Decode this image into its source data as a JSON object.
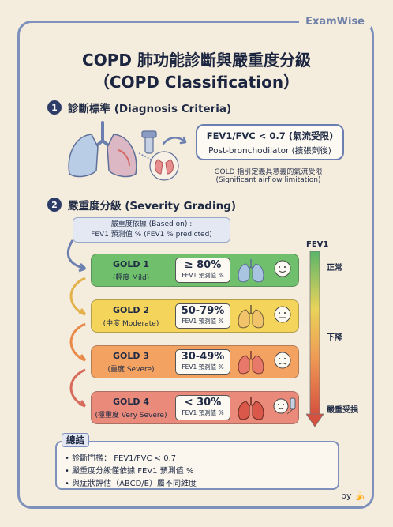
{
  "brand": "ExamWise",
  "title": {
    "line1": "COPD 肺功能診斷與嚴重度分級",
    "line2": "（COPD Classification）"
  },
  "diagnosis": {
    "number": "1",
    "heading": "診斷標準 (Diagnosis Criteria)",
    "criterion": "FEV1/FVC < 0.7 (氣流受限)",
    "criterion_sub": "Post-bronchodilator (擴張劑後)",
    "note_line1": "GOLD 指引定義具意義的氣流受限",
    "note_line2": "(Significant airflow limitation)"
  },
  "severity": {
    "number": "2",
    "heading": "嚴重度分級 (Severity Grading)",
    "basis_line1": "嚴重度依據 (Based on) :",
    "basis_line2": "FEV1 預測值 % (FEV1 % predicted)",
    "grades": [
      {
        "name": "GOLD 1",
        "sub": "(輕度 Mild)",
        "value": "≥ 80%",
        "value_label": "FEV1 預測值 %",
        "color": "#6fbf6c"
      },
      {
        "name": "GOLD 2",
        "sub": "(中度 Moderate)",
        "value": "50-79%",
        "value_label": "FEV1 預測值 %",
        "color": "#f4d45a"
      },
      {
        "name": "GOLD 3",
        "sub": "(重度 Severe)",
        "value": "30-49%",
        "value_label": "FEV1 預測值 %",
        "color": "#f3a262"
      },
      {
        "name": "GOLD 4",
        "sub": "(極重度 Very Severe)",
        "value": "< 30%",
        "value_label": "FEV1 預測值 %",
        "color": "#e98a7a"
      }
    ],
    "scale": {
      "label": "FEV1",
      "levels": [
        "正常",
        "下降",
        "嚴重受損"
      ]
    }
  },
  "summary": {
    "title": "總結",
    "items": [
      "診斷門檻： FEV1/FVC < 0.7",
      "嚴重度分級僅依據 FEV1 預測值 %",
      "與症狀評估（ABCD/E）屬不同維度"
    ]
  },
  "credit": "by 🍌"
}
